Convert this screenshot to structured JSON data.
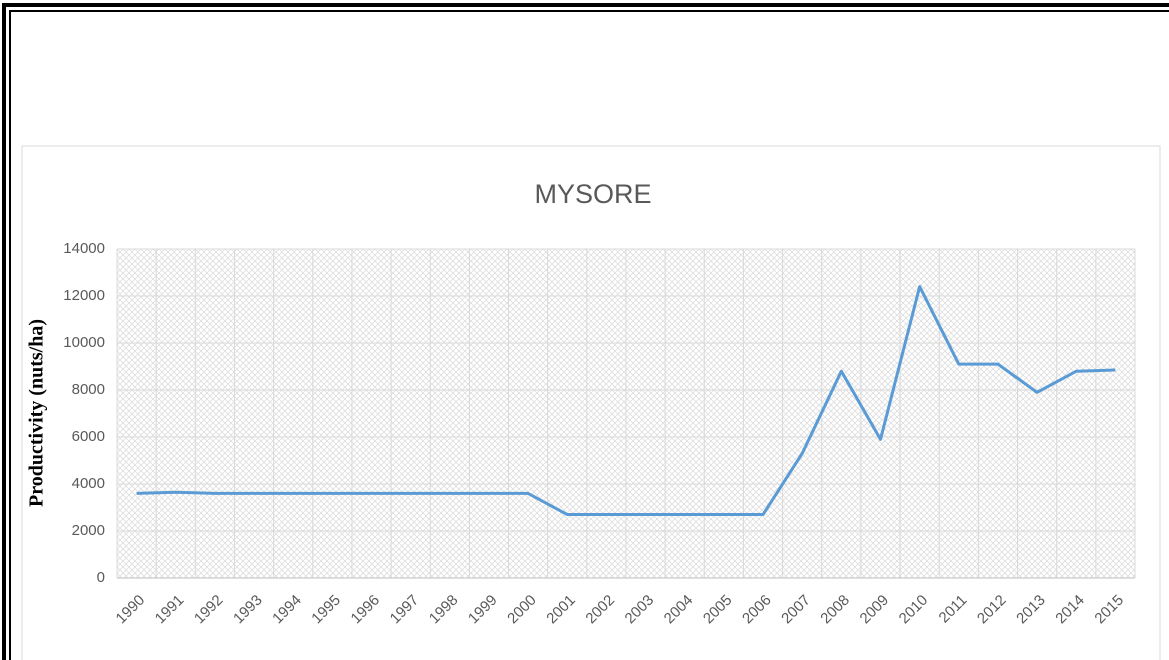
{
  "chart_data": {
    "type": "line",
    "title": "MYSORE",
    "y_label": "Productivity (nuts/ha)",
    "categories": [
      "1990",
      "1991",
      "1992",
      "1993",
      "1994",
      "1995",
      "1996",
      "1997",
      "1998",
      "1999",
      "2000",
      "2001",
      "2002",
      "2003",
      "2004",
      "2005",
      "2006",
      "2007",
      "2008",
      "2009",
      "2010",
      "2011",
      "2012",
      "2013",
      "2014",
      "2015"
    ],
    "values": [
      3600,
      3650,
      3600,
      3600,
      3600,
      3600,
      3600,
      3600,
      3600,
      3600,
      3600,
      2700,
      2700,
      2700,
      2700,
      2700,
      2700,
      5300,
      8800,
      5900,
      12400,
      9100,
      9100,
      7900,
      8800,
      8850
    ],
    "color": "#5b9bd5",
    "ylim": [
      0,
      14000
    ],
    "yticks": [
      0,
      2000,
      4000,
      6000,
      8000,
      10000,
      12000,
      14000
    ],
    "grid": true
  }
}
